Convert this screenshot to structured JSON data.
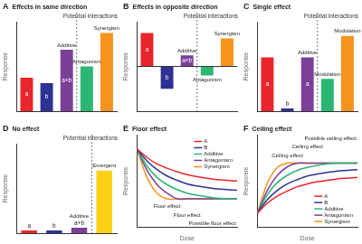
{
  "chart_data": [
    {
      "panel": "A",
      "type": "bar",
      "title": "Effects in same direction",
      "subtitle": "Potential interactions",
      "ylabel": "Response",
      "categories": [
        null,
        null,
        "Additive",
        "Antagonism",
        "Synergism"
      ],
      "annotations": [
        "a",
        "b",
        "a+b",
        null,
        null
      ],
      "values": [
        3,
        2.5,
        5.5,
        4,
        7
      ],
      "colors": [
        "#e8262b",
        "#2e3192",
        "#7b3f98",
        "#2bb673",
        "#f7941d"
      ],
      "ylim": [
        0,
        8
      ],
      "tick_labels": false
    },
    {
      "panel": "B",
      "type": "bar",
      "title": "Effects in opposite direction",
      "subtitle": "Potential interactions",
      "ylabel": "Response",
      "categories": [
        null,
        null,
        "Additive",
        "Antagonism",
        "Synergism"
      ],
      "annotations": [
        "a",
        "b",
        "a+b",
        null,
        null
      ],
      "values": [
        3,
        -2,
        1,
        -0.8,
        2.5
      ],
      "colors": [
        "#e8262b",
        "#2e3192",
        "#7b3f98",
        "#2bb673",
        "#f7941d"
      ],
      "ylim": [
        -4,
        4
      ],
      "tick_labels": false
    },
    {
      "panel": "C",
      "type": "bar",
      "title": "Single effect",
      "subtitle": "Potential interactions",
      "ylabel": "Response",
      "categories": [
        null,
        null,
        "Additive",
        "Modulation",
        "Modulation"
      ],
      "annotations": [
        "a",
        "b",
        "a",
        null,
        null
      ],
      "values": [
        3,
        0.15,
        3,
        1.8,
        4.2
      ],
      "colors": [
        "#e8262b",
        "#2e3192",
        "#7b3f98",
        "#2bb673",
        "#f7941d"
      ],
      "ylim": [
        0,
        5
      ],
      "tick_labels": false
    },
    {
      "panel": "D",
      "type": "bar",
      "title": "No effect",
      "subtitle": "Potential interactions",
      "ylabel": "Response",
      "categories": [
        null,
        null,
        "Additive",
        "Emergent"
      ],
      "annotations": [
        "a",
        "b",
        "a+b",
        null
      ],
      "values": [
        0.15,
        0.15,
        0.3,
        3.5
      ],
      "colors": [
        "#e8262b",
        "#2e3192",
        "#7b3f98",
        "#fcd116"
      ],
      "ylim": [
        0,
        5
      ],
      "tick_labels": false
    },
    {
      "panel": "E",
      "type": "line",
      "title": "Floor effect",
      "xlabel": "Dose",
      "ylabel": "Response",
      "x": [
        0,
        1,
        2,
        3,
        4,
        5,
        6,
        7,
        8,
        9,
        10
      ],
      "xlim": [
        0,
        10
      ],
      "ylim": [
        0,
        13
      ],
      "legend": "top right",
      "tick_labels": false,
      "series": [
        {
          "name": "A",
          "color": "#e8262b",
          "values": [
            11,
            9.8,
            8.9,
            8.3,
            7.8,
            7.4,
            7.1,
            6.9,
            6.7,
            6.6,
            6.5
          ]
        },
        {
          "name": "B",
          "color": "#2e3192",
          "values": [
            11,
            9.3,
            8.1,
            7.2,
            6.6,
            6.1,
            5.8,
            5.6,
            5.4,
            5.3,
            5.2
          ]
        },
        {
          "name": "Additive",
          "color": "#2bb673",
          "values": [
            11,
            8.6,
            7.0,
            6.0,
            5.3,
            4.8,
            4.5,
            4.3,
            4.1,
            4.0,
            4.0
          ]
        },
        {
          "name": "Antagonism",
          "color": "#7b3f98",
          "values": [
            11,
            8.0,
            6.0,
            4.8,
            4,
            4,
            4,
            4,
            4,
            4,
            4
          ]
        },
        {
          "name": "Synergism",
          "color": "#f7941d",
          "values": [
            11,
            7.0,
            4.8,
            4,
            4,
            4,
            4,
            4,
            4,
            4,
            4
          ]
        }
      ],
      "annotations": [
        {
          "x": 3,
          "y": 3,
          "text": "Floor effect"
        },
        {
          "x": 5,
          "y": 1.7,
          "text": "Floor effect"
        },
        {
          "x": 10,
          "y": 0.5,
          "text": "Possible floor effect"
        }
      ]
    },
    {
      "panel": "F",
      "type": "line",
      "title": "Ceiling effect",
      "xlabel": "Dose",
      "ylabel": "Response",
      "x": [
        0,
        1,
        2,
        3,
        4,
        5,
        6,
        7,
        8,
        9,
        10
      ],
      "xlim": [
        0,
        10
      ],
      "ylim": [
        0,
        13
      ],
      "legend": "bottom right",
      "tick_labels": false,
      "series": [
        {
          "name": "A",
          "color": "#e8262b",
          "values": [
            2,
            3.4,
            4.4,
            5.1,
            5.7,
            6.1,
            6.4,
            6.6,
            6.8,
            6.9,
            7.0
          ]
        },
        {
          "name": "B",
          "color": "#2e3192",
          "values": [
            2,
            3.9,
            5.2,
            6.1,
            6.7,
            7.2,
            7.5,
            7.7,
            7.9,
            8.0,
            8.1
          ]
        },
        {
          "name": "Additive",
          "color": "#2bb673",
          "values": [
            2,
            4.6,
            6.3,
            7.3,
            8.0,
            8.4,
            8.7,
            8.9,
            9,
            9,
            9
          ]
        },
        {
          "name": "Antagonism",
          "color": "#7b3f98",
          "values": [
            2,
            5.2,
            7.3,
            8.5,
            9,
            9,
            9,
            9,
            9,
            9,
            9
          ]
        },
        {
          "name": "Synergism",
          "color": "#f7941d",
          "values": [
            2,
            6.2,
            8.4,
            9,
            9,
            9,
            9,
            9,
            9,
            9,
            9
          ]
        }
      ],
      "annotations": [
        {
          "x": 3,
          "y": 10,
          "text": "Ceiling effect"
        },
        {
          "x": 5,
          "y": 11.3,
          "text": "Ceiling effect"
        },
        {
          "x": 10,
          "y": 12.5,
          "text": "Possible ceiling effect"
        }
      ]
    }
  ]
}
